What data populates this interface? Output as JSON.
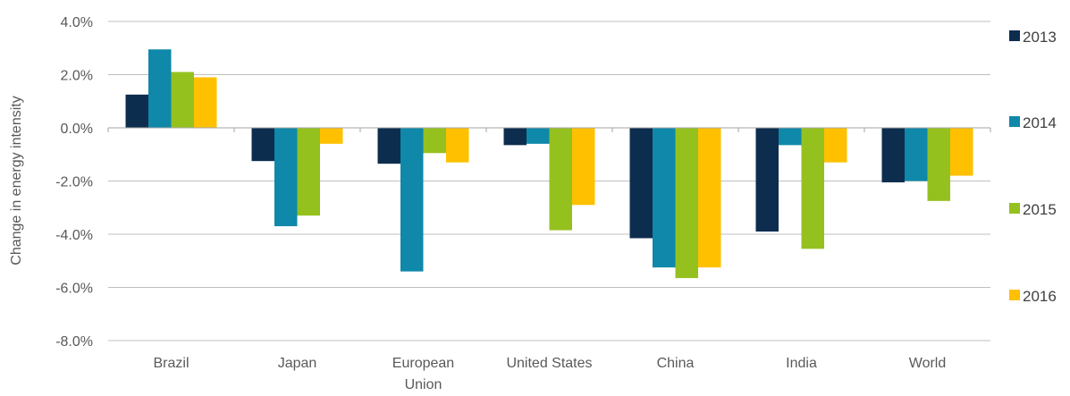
{
  "chart_data": {
    "type": "bar",
    "title": "",
    "xlabel": "",
    "ylabel": "Change in energy intensity",
    "ylim": [
      -8.0,
      4.0
    ],
    "yticks": [
      "4.0%",
      "2.0%",
      "0.0%",
      "-2.0%",
      "-4.0%",
      "-6.0%",
      "-8.0%"
    ],
    "ytick_values": [
      4,
      2,
      0,
      -2,
      -4,
      -6,
      -8
    ],
    "categories": [
      "Brazil",
      "Japan",
      "European Union",
      "United States",
      "China",
      "India",
      "World"
    ],
    "category_lines": [
      [
        "Brazil"
      ],
      [
        "Japan"
      ],
      [
        "European",
        "Union"
      ],
      [
        "United States"
      ],
      [
        "China"
      ],
      [
        "India"
      ],
      [
        "World"
      ]
    ],
    "grid": true,
    "legend_position": "right",
    "series": [
      {
        "name": "2013",
        "color": "#0d2d4f",
        "values": [
          1.25,
          -1.25,
          -1.35,
          -0.65,
          -4.15,
          -3.9,
          -2.05
        ]
      },
      {
        "name": "2014",
        "color": "#0f88aa",
        "values": [
          2.95,
          -3.7,
          -5.4,
          -0.6,
          -5.25,
          -0.65,
          -2.0
        ]
      },
      {
        "name": "2015",
        "color": "#95c11f",
        "values": [
          2.1,
          -3.3,
          -0.95,
          -3.85,
          -5.65,
          -4.55,
          -2.75
        ]
      },
      {
        "name": "2016",
        "color": "#ffc000",
        "values": [
          1.9,
          -0.6,
          -1.3,
          -2.9,
          -5.25,
          -1.3,
          -1.8
        ]
      }
    ]
  }
}
